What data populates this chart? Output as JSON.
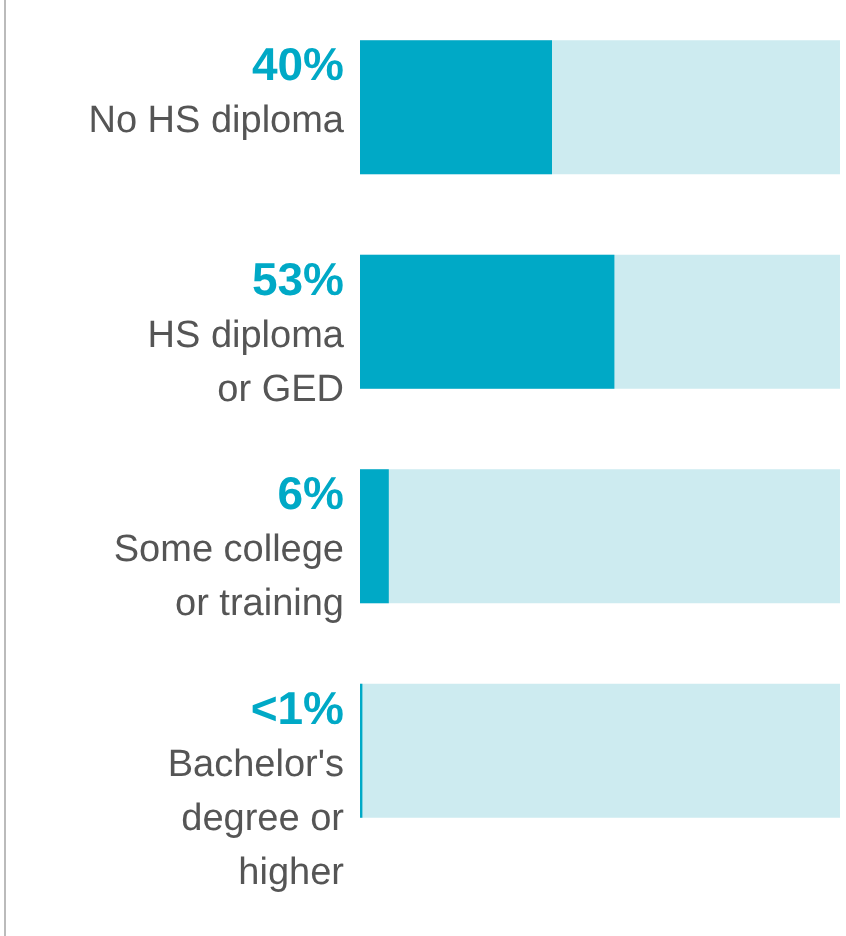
{
  "chart_data": {
    "type": "bar",
    "orientation": "horizontal",
    "categories": [
      "No HS diploma",
      "HS diploma\nor GED",
      "Some college\nor training",
      "Bachelor's\ndegree or\nhigher"
    ],
    "values": [
      40,
      53,
      6,
      0.5
    ],
    "value_labels": [
      "40%",
      "53%",
      "6%",
      "<1%"
    ],
    "color": "#00a9c6",
    "xlim": [
      0,
      100
    ],
    "tick_labels": false
  }
}
